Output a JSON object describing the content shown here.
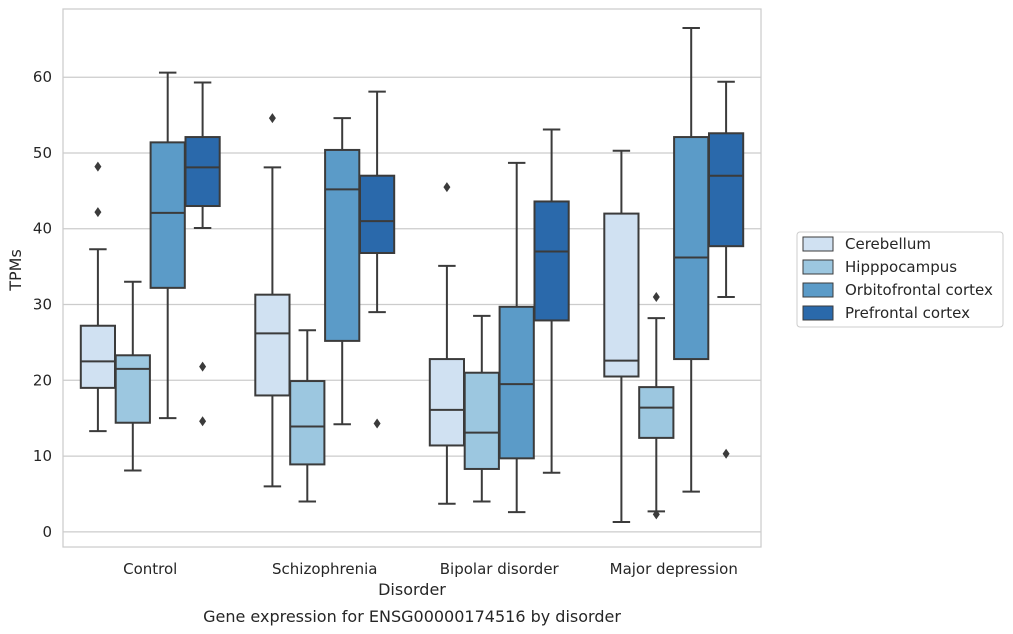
{
  "chart_data": {
    "type": "box",
    "caption": "Gene expression for ENSG00000174516 by disorder",
    "xlabel": "Disorder",
    "ylabel": "TPMs",
    "ylim": [
      -2,
      69
    ],
    "yticks": [
      0,
      10,
      20,
      30,
      40,
      50,
      60
    ],
    "grid": true,
    "legend_position": "right",
    "categories": [
      "Control",
      "Schizophrenia",
      "Bipolar disorder",
      "Major depression"
    ],
    "series": [
      {
        "name": "Cerebellum",
        "color": "#d0e1f2",
        "boxes": [
          {
            "whisker_low": 13.3,
            "q1": 19.0,
            "median": 22.5,
            "q3": 27.2,
            "whisker_high": 37.3,
            "outliers": [
              42.2,
              48.2
            ]
          },
          {
            "whisker_low": 6.0,
            "q1": 18.0,
            "median": 26.2,
            "q3": 31.3,
            "whisker_high": 48.1,
            "outliers": [
              54.6
            ]
          },
          {
            "whisker_low": 3.7,
            "q1": 11.4,
            "median": 16.1,
            "q3": 22.8,
            "whisker_high": 35.1,
            "outliers": [
              45.5
            ]
          },
          {
            "whisker_low": 1.3,
            "q1": 20.5,
            "median": 22.6,
            "q3": 42.0,
            "whisker_high": 50.3,
            "outliers": []
          }
        ]
      },
      {
        "name": "Hipppocampus",
        "color": "#9cc7e0",
        "boxes": [
          {
            "whisker_low": 8.1,
            "q1": 14.4,
            "median": 21.5,
            "q3": 23.3,
            "whisker_high": 33.0,
            "outliers": []
          },
          {
            "whisker_low": 4.0,
            "q1": 8.9,
            "median": 13.9,
            "q3": 19.9,
            "whisker_high": 26.6,
            "outliers": []
          },
          {
            "whisker_low": 4.0,
            "q1": 8.3,
            "median": 13.1,
            "q3": 21.0,
            "whisker_high": 28.5,
            "outliers": []
          },
          {
            "whisker_low": 2.7,
            "q1": 12.4,
            "median": 16.4,
            "q3": 19.1,
            "whisker_high": 28.2,
            "outliers": [
              2.3,
              31.0
            ]
          }
        ]
      },
      {
        "name": "Orbitofrontal cortex",
        "color": "#5b9bc8",
        "boxes": [
          {
            "whisker_low": 15.0,
            "q1": 32.2,
            "median": 42.1,
            "q3": 51.4,
            "whisker_high": 60.6,
            "outliers": []
          },
          {
            "whisker_low": 14.2,
            "q1": 25.2,
            "median": 45.2,
            "q3": 50.4,
            "whisker_high": 54.6,
            "outliers": []
          },
          {
            "whisker_low": 2.6,
            "q1": 9.7,
            "median": 19.5,
            "q3": 29.7,
            "whisker_high": 48.7,
            "outliers": []
          },
          {
            "whisker_low": 5.3,
            "q1": 22.8,
            "median": 36.2,
            "q3": 52.1,
            "whisker_high": 66.5,
            "outliers": []
          }
        ]
      },
      {
        "name": "Prefrontal cortex",
        "color": "#2a69ab",
        "boxes": [
          {
            "whisker_low": 40.1,
            "q1": 43.0,
            "median": 48.1,
            "q3": 52.1,
            "whisker_high": 59.3,
            "outliers": [
              14.6,
              21.8
            ]
          },
          {
            "whisker_low": 29.0,
            "q1": 36.8,
            "median": 41.0,
            "q3": 47.0,
            "whisker_high": 58.1,
            "outliers": [
              14.3
            ]
          },
          {
            "whisker_low": 7.8,
            "q1": 27.9,
            "median": 37.0,
            "q3": 43.6,
            "whisker_high": 53.1,
            "outliers": []
          },
          {
            "whisker_low": 31.0,
            "q1": 37.7,
            "median": 47.0,
            "q3": 52.6,
            "whisker_high": 59.4,
            "outliers": [
              10.3
            ]
          }
        ]
      }
    ]
  }
}
